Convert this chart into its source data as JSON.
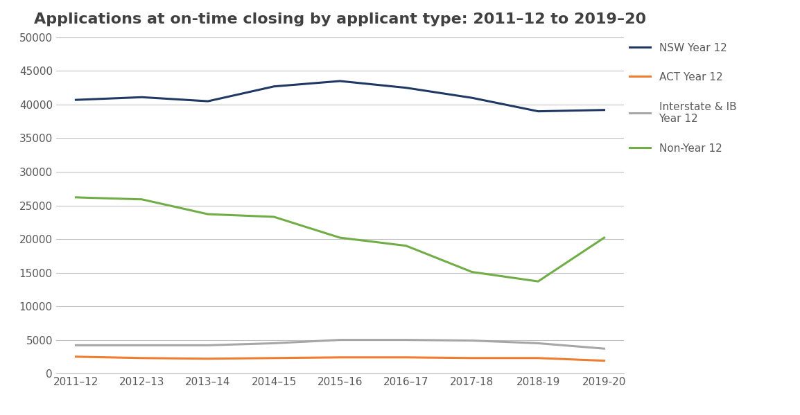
{
  "title": "Applications at on-time closing by applicant type: 2011–12 to 2019–20",
  "x_labels": [
    "2011–12",
    "2012–13",
    "2013–14",
    "2014–15",
    "2015–16",
    "2016–17",
    "2017-18",
    "2018-19",
    "2019-20"
  ],
  "series": {
    "NSW Year 12": {
      "values": [
        40700,
        41100,
        40500,
        42700,
        43500,
        42500,
        41000,
        39000,
        39200
      ],
      "color": "#1f3864",
      "linewidth": 2.2
    },
    "ACT Year 12": {
      "values": [
        2500,
        2300,
        2200,
        2300,
        2400,
        2400,
        2300,
        2300,
        1900
      ],
      "color": "#ed7d31",
      "linewidth": 2.2
    },
    "Interstate & IB Year 12": {
      "values": [
        4200,
        4200,
        4200,
        4500,
        5000,
        5000,
        4900,
        4500,
        3700
      ],
      "color": "#a6a6a6",
      "linewidth": 2.2
    },
    "Non-Year 12": {
      "values": [
        26200,
        25900,
        23700,
        23300,
        20200,
        19000,
        15100,
        13700,
        20200
      ],
      "color": "#70ad47",
      "linewidth": 2.2
    }
  },
  "legend_labels": [
    "NSW Year 12",
    "ACT Year 12",
    "Interstate & IB\nYear 12",
    "Non-Year 12"
  ],
  "legend_series_keys": [
    "NSW Year 12",
    "ACT Year 12",
    "Interstate & IB Year 12",
    "Non-Year 12"
  ],
  "ylim": [
    0,
    50000
  ],
  "yticks": [
    0,
    5000,
    10000,
    15000,
    20000,
    25000,
    30000,
    35000,
    40000,
    45000,
    50000
  ],
  "background_color": "#ffffff",
  "grid_color": "#bfbfbf",
  "title_fontsize": 16,
  "legend_fontsize": 11,
  "tick_fontsize": 11
}
